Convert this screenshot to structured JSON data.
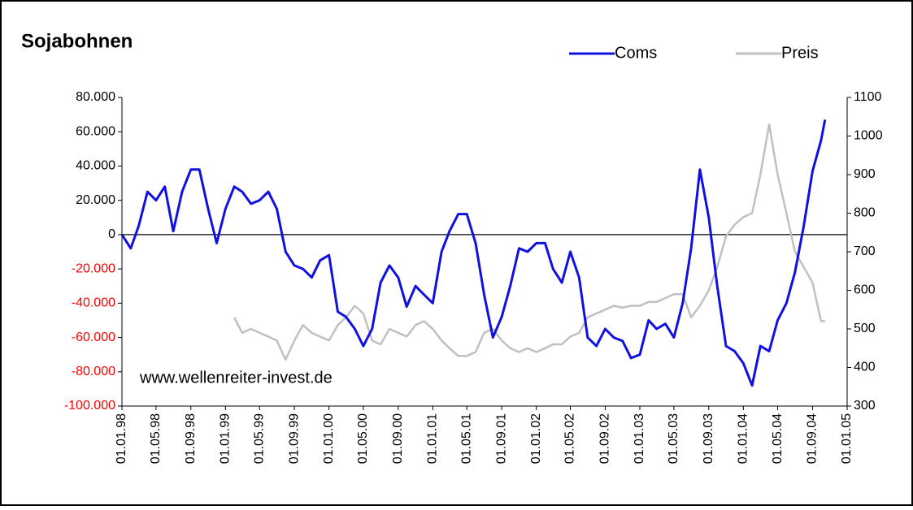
{
  "chart_data": {
    "type": "line",
    "title": "Sojabohnen",
    "annotation": "www.wellenreiter-invest.de",
    "legend": "top-right",
    "zero_line": true,
    "negative_tick_color": "#ff0000",
    "xlim": [
      "01.01.98",
      "01.01.05"
    ],
    "xticks": [
      "01.01.98",
      "01.05.98",
      "01.09.98",
      "01.01.99",
      "01.05.99",
      "01.09.99",
      "01.01.00",
      "01.05.00",
      "01.09.00",
      "01.01.01",
      "01.05.01",
      "01.09.01",
      "01.01.02",
      "01.05.02",
      "01.09.02",
      "01.01.03",
      "01.05.03",
      "01.09.03",
      "01.01.04",
      "01.05.04",
      "01.09.04",
      "01.01.05"
    ],
    "ylim": [
      -100000,
      80000
    ],
    "yticks": [
      {
        "value": -100000,
        "label": "-100.000"
      },
      {
        "value": -80000,
        "label": "-80.000"
      },
      {
        "value": -60000,
        "label": "-60.000"
      },
      {
        "value": -40000,
        "label": "-40.000"
      },
      {
        "value": -20000,
        "label": "-20.000"
      },
      0,
      {
        "value": 20000,
        "label": "20.000"
      },
      {
        "value": 40000,
        "label": "40.000"
      },
      {
        "value": 60000,
        "label": "60.000"
      },
      {
        "value": 80000,
        "label": "80.000"
      }
    ],
    "y2lim": [
      300,
      1100
    ],
    "y2ticks": [
      300,
      400,
      500,
      600,
      700,
      800,
      900,
      1000,
      1100
    ],
    "x": [
      "01.01.98",
      "01.02.98",
      "01.03.98",
      "01.04.98",
      "01.05.98",
      "01.06.98",
      "01.07.98",
      "01.08.98",
      "01.09.98",
      "01.10.98",
      "01.11.98",
      "01.12.98",
      "01.01.99",
      "01.02.99",
      "01.03.99",
      "01.04.99",
      "01.05.99",
      "01.06.99",
      "01.07.99",
      "01.08.99",
      "01.09.99",
      "01.10.99",
      "01.11.99",
      "01.12.99",
      "01.01.00",
      "01.02.00",
      "01.03.00",
      "01.04.00",
      "01.05.00",
      "01.06.00",
      "01.07.00",
      "01.08.00",
      "01.09.00",
      "01.10.00",
      "01.11.00",
      "01.12.00",
      "01.01.01",
      "01.02.01",
      "01.03.01",
      "01.04.01",
      "01.05.01",
      "01.06.01",
      "01.07.01",
      "01.08.01",
      "01.09.01",
      "01.10.01",
      "01.11.01",
      "01.12.01",
      "01.01.02",
      "01.02.02",
      "01.03.02",
      "01.04.02",
      "01.05.02",
      "01.06.02",
      "01.07.02",
      "01.08.02",
      "01.09.02",
      "01.10.02",
      "01.11.02",
      "01.12.02",
      "01.01.03",
      "01.02.03",
      "01.03.03",
      "01.04.03",
      "01.05.03",
      "01.06.03",
      "01.07.03",
      "01.08.03",
      "01.09.03",
      "01.10.03",
      "01.11.03",
      "01.12.03",
      "01.01.04",
      "01.02.04",
      "01.03.04",
      "01.04.04",
      "01.05.04",
      "01.06.04",
      "01.07.04",
      "01.08.04",
      "01.09.04",
      "01.10.04",
      "15.10.04"
    ],
    "series": [
      {
        "name": "Coms",
        "color": "#1010e0",
        "axis": "y",
        "values": [
          0,
          -8000,
          5000,
          25000,
          20000,
          28000,
          2000,
          25000,
          38000,
          38000,
          15000,
          -5000,
          15000,
          28000,
          25000,
          18000,
          20000,
          25000,
          15000,
          -10000,
          -18000,
          -20000,
          -25000,
          -15000,
          -12000,
          -45000,
          -48000,
          -55000,
          -65000,
          -55000,
          -28000,
          -18000,
          -25000,
          -42000,
          -30000,
          -35000,
          -40000,
          -10000,
          2000,
          12000,
          12000,
          -5000,
          -35000,
          -60000,
          -48000,
          -30000,
          -8000,
          -10000,
          -5000,
          -5000,
          -20000,
          -28000,
          -10000,
          -25000,
          -60000,
          -65000,
          -55000,
          -60000,
          -62000,
          -72000,
          -70000,
          -50000,
          -55000,
          -52000,
          -60000,
          -40000,
          -8000,
          38000,
          10000,
          -30000,
          -65000,
          -68000,
          -75000,
          -88000,
          -65000,
          -68000,
          -50000,
          -40000,
          -22000,
          5000,
          37000,
          55000,
          67000
        ]
      },
      {
        "name": "Preis",
        "color": "#c0c0c0",
        "axis": "y2",
        "values": [
          null,
          null,
          null,
          null,
          null,
          null,
          null,
          null,
          null,
          null,
          null,
          null,
          null,
          530,
          490,
          500,
          490,
          480,
          470,
          420,
          470,
          510,
          490,
          480,
          470,
          510,
          530,
          560,
          540,
          470,
          460,
          500,
          490,
          480,
          510,
          520,
          500,
          470,
          450,
          430,
          430,
          440,
          490,
          500,
          470,
          450,
          440,
          450,
          440,
          450,
          460,
          460,
          480,
          490,
          530,
          540,
          550,
          560,
          555,
          560,
          560,
          570,
          570,
          580,
          590,
          590,
          530,
          560,
          600,
          660,
          740,
          770,
          790,
          800,
          900,
          1030,
          900,
          800,
          700,
          660,
          620,
          520,
          520
        ]
      }
    ]
  }
}
